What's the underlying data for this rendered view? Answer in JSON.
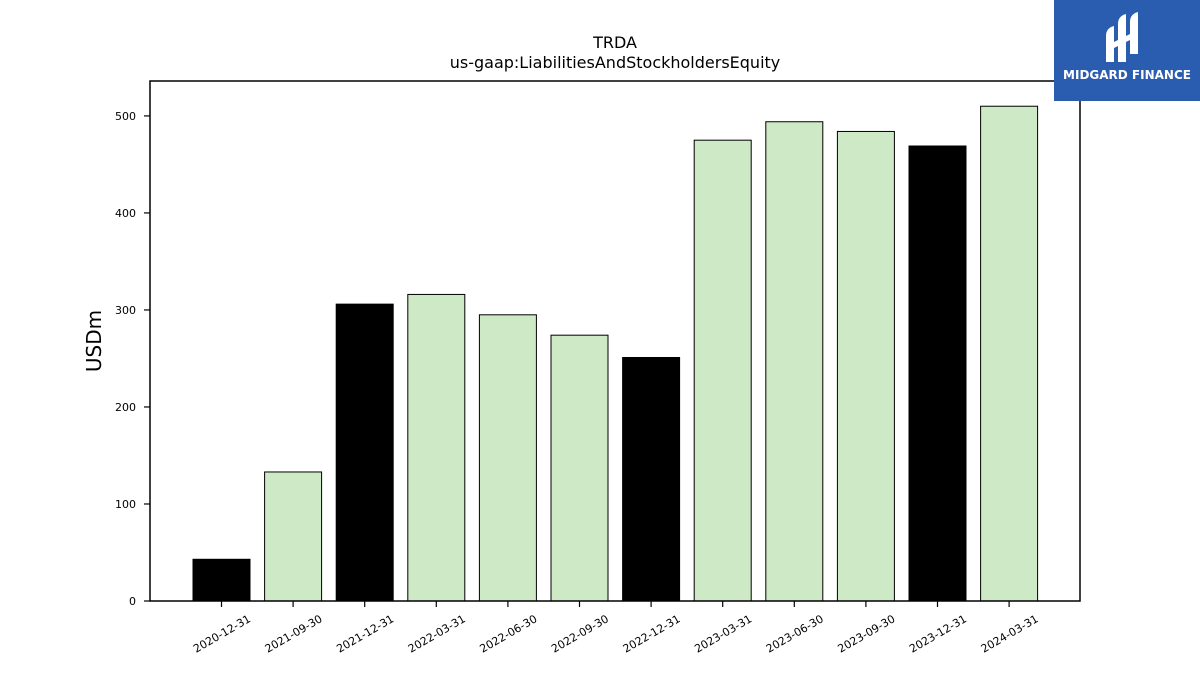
{
  "brand": {
    "name": "MIDGARD FINANCE",
    "bg_color": "#2a5db0",
    "icon": "midgard-logo-icon"
  },
  "chart_data": {
    "type": "bar",
    "title": "TRDA",
    "subtitle": "us-gaap:LiabilitiesAndStockholdersEquity",
    "xlabel": "",
    "ylabel": "USDm",
    "ylim": [
      0,
      536
    ],
    "yticks": [
      0,
      100,
      200,
      300,
      400,
      500
    ],
    "grid": false,
    "categories": [
      "2020-12-31",
      "2021-09-30",
      "2021-12-31",
      "2022-03-31",
      "2022-06-30",
      "2022-09-30",
      "2022-12-31",
      "2023-03-31",
      "2023-06-30",
      "2023-09-30",
      "2023-12-31",
      "2024-03-31"
    ],
    "values": [
      43,
      133,
      306,
      316,
      295,
      274,
      251,
      475,
      494,
      484,
      469,
      510
    ],
    "bar_colors": [
      "#000000",
      "#cde9c6",
      "#000000",
      "#cde9c6",
      "#cde9c6",
      "#cde9c6",
      "#000000",
      "#cde9c6",
      "#cde9c6",
      "#cde9c6",
      "#000000",
      "#cde9c6"
    ]
  }
}
